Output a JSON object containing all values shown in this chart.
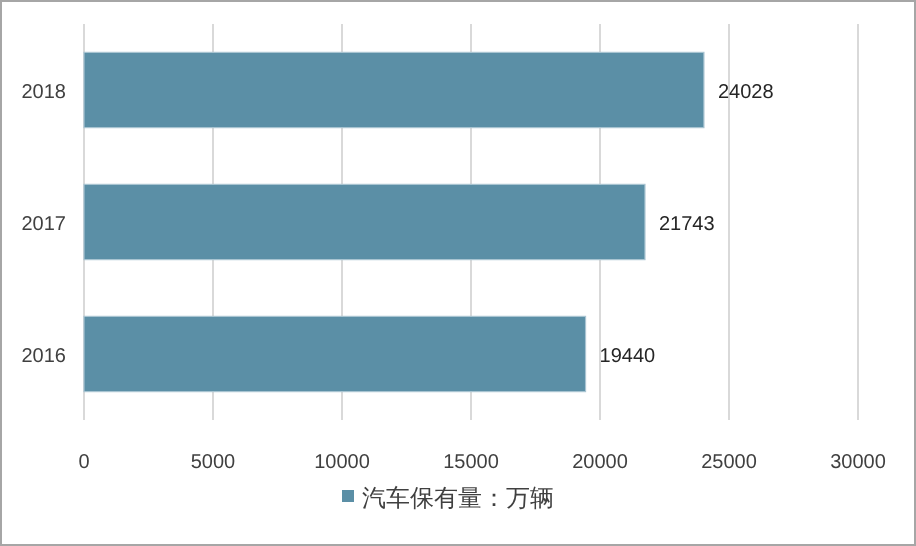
{
  "chart_data": {
    "type": "bar",
    "orientation": "horizontal",
    "categories": [
      "2018",
      "2017",
      "2016"
    ],
    "series": [
      {
        "name": "汽车保有量：万辆",
        "color": "#5b8fa6",
        "values": [
          24028,
          21743,
          19440
        ]
      }
    ],
    "xlim": [
      0,
      30000
    ],
    "xticks": [
      0,
      5000,
      10000,
      15000,
      20000,
      25000,
      30000
    ],
    "grid": "x",
    "legend": "bottom",
    "data_labels": true
  }
}
